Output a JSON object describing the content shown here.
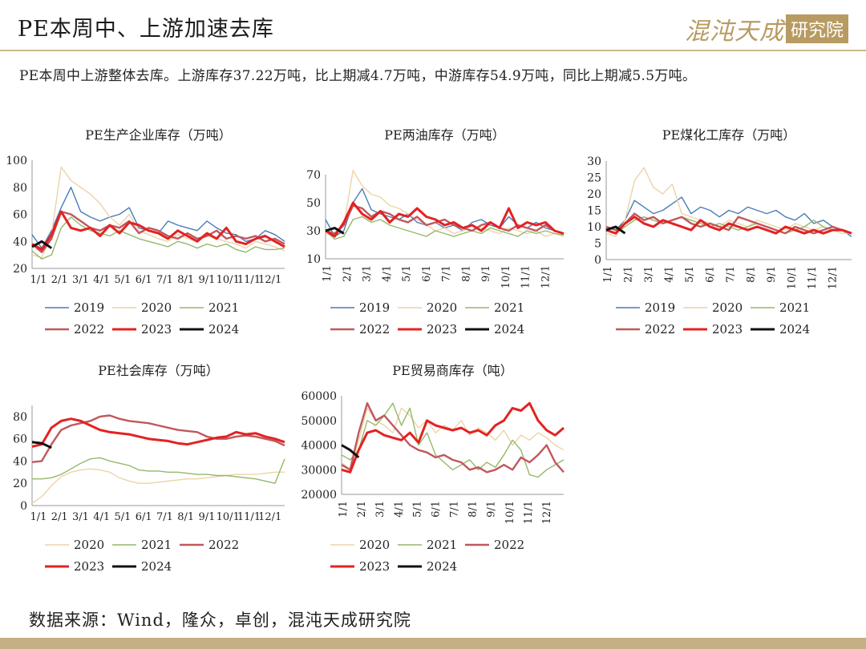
{
  "header": {
    "title": "PE本周中、上游加速去库",
    "logo_text": "混沌天成",
    "logo_box_text": "研究院"
  },
  "summary": "PE本周中上游整体去库。上游库存37.22万吨，比上期减4.7万吨，中游库存54.9万吨，同比上期减5.5万吨。",
  "source": "数据来源：Wind，隆众，卓创，混沌天成研究院",
  "colors": {
    "2019": "#4a7cb5",
    "2020": "#ecd4a8",
    "2021": "#94b86a",
    "2022": "#c0585e",
    "2023": "#e32222",
    "2024": "#111111"
  },
  "chart_data": [
    {
      "type": "line",
      "title": "PE生产企业库存（万吨）",
      "ylim": [
        20,
        100
      ],
      "yticks": [
        "100",
        "80",
        "60",
        "40",
        "20"
      ],
      "xticks": [
        "1/1",
        "2/1",
        "3/1",
        "4/1",
        "5/1",
        "6/1",
        "7/1",
        "8/1",
        "9/1",
        "10/1",
        "11/1",
        "12/1"
      ],
      "series": [
        {
          "name": "2019",
          "values": [
            45,
            35,
            48,
            65,
            80,
            62,
            58,
            55,
            58,
            60,
            65,
            50,
            48,
            46,
            55,
            52,
            50,
            48,
            55,
            50,
            46,
            45,
            40,
            42,
            48,
            45,
            40
          ]
        },
        {
          "name": "2020",
          "values": [
            30,
            28,
            45,
            95,
            85,
            80,
            75,
            68,
            58,
            52,
            60,
            48,
            45,
            42,
            40,
            45,
            42,
            40,
            44,
            42,
            40,
            38,
            35,
            40,
            38,
            36,
            33
          ]
        },
        {
          "name": "2021",
          "values": [
            33,
            27,
            30,
            50,
            58,
            52,
            48,
            46,
            44,
            48,
            45,
            42,
            40,
            38,
            36,
            40,
            38,
            35,
            38,
            36,
            38,
            34,
            32,
            36,
            34,
            34,
            35
          ]
        },
        {
          "name": "2022",
          "values": [
            38,
            32,
            42,
            62,
            60,
            55,
            50,
            48,
            52,
            50,
            55,
            46,
            50,
            48,
            44,
            42,
            46,
            42,
            44,
            48,
            42,
            44,
            42,
            44,
            40,
            42,
            38
          ]
        },
        {
          "name": "2023",
          "values": [
            38,
            34,
            45,
            62,
            50,
            48,
            50,
            44,
            52,
            46,
            54,
            52,
            48,
            46,
            42,
            48,
            44,
            40,
            46,
            42,
            50,
            40,
            38,
            42,
            44,
            40,
            36
          ]
        },
        {
          "name": "2024",
          "values": [
            36,
            40,
            35
          ]
        }
      ]
    },
    {
      "type": "line",
      "title": "PE两油库存（万吨）",
      "ylim": [
        10,
        70
      ],
      "yticks": [
        "70",
        "50",
        "30",
        "10"
      ],
      "xticks": [
        "1/1",
        "2/1",
        "3/1",
        "4/1",
        "5/1",
        "6/1",
        "7/1",
        "8/1",
        "9/1",
        "10/1",
        "11/1",
        "12/1"
      ],
      "series": [
        {
          "name": "2019",
          "values": [
            38,
            26,
            30,
            50,
            60,
            45,
            42,
            40,
            38,
            42,
            36,
            34,
            36,
            32,
            34,
            30,
            36,
            38,
            34,
            32,
            40,
            34,
            32,
            36,
            32,
            30,
            28
          ]
        },
        {
          "name": "2020",
          "values": [
            28,
            26,
            34,
            73,
            62,
            56,
            54,
            48,
            46,
            42,
            38,
            34,
            30,
            32,
            28,
            30,
            34,
            32,
            30,
            28,
            32,
            30,
            28,
            30,
            26,
            28,
            26
          ]
        },
        {
          "name": "2021",
          "values": [
            30,
            24,
            26,
            38,
            40,
            36,
            38,
            34,
            32,
            30,
            28,
            26,
            30,
            28,
            26,
            28,
            30,
            28,
            32,
            30,
            28,
            26,
            30,
            28,
            30,
            28,
            27
          ]
        },
        {
          "name": "2022",
          "values": [
            30,
            28,
            34,
            48,
            46,
            40,
            44,
            42,
            38,
            36,
            40,
            34,
            36,
            38,
            34,
            32,
            30,
            34,
            36,
            32,
            30,
            34,
            32,
            30,
            34,
            30,
            28
          ]
        },
        {
          "name": "2023",
          "values": [
            30,
            26,
            36,
            50,
            42,
            38,
            44,
            36,
            42,
            40,
            46,
            40,
            38,
            34,
            36,
            32,
            34,
            30,
            36,
            32,
            46,
            32,
            36,
            34,
            36,
            30,
            28
          ]
        },
        {
          "name": "2024",
          "values": [
            30,
            32,
            28
          ]
        }
      ]
    },
    {
      "type": "line",
      "title": "PE煤化工库存（万吨）",
      "ylim": [
        0,
        30
      ],
      "yticks": [
        "30",
        "25",
        "20",
        "15",
        "10",
        "5",
        "0"
      ],
      "xticks": [
        "1/1",
        "2/1",
        "3/1",
        "4/1",
        "5/1",
        "6/1",
        "7/1",
        "8/1",
        "9/1",
        "10/1",
        "11/1",
        "12/1"
      ],
      "series": [
        {
          "name": "2019",
          "values": [
            10,
            9,
            12,
            18,
            16,
            14,
            15,
            17,
            19,
            14,
            16,
            15,
            13,
            15,
            14,
            16,
            15,
            14,
            15,
            13,
            12,
            14,
            11,
            12,
            10,
            9,
            7
          ]
        },
        {
          "name": "2020",
          "values": [
            8,
            7,
            12,
            24,
            28,
            22,
            20,
            23,
            14,
            13,
            12,
            11,
            10,
            12,
            11,
            10,
            12,
            11,
            10,
            9,
            11,
            10,
            9,
            10,
            9,
            8,
            8
          ]
        },
        {
          "name": "2021",
          "values": [
            9,
            8,
            10,
            12,
            13,
            12,
            11,
            12,
            13,
            12,
            11,
            10,
            11,
            10,
            9,
            10,
            11,
            10,
            9,
            8,
            9,
            10,
            12,
            10,
            9,
            9,
            8
          ]
        },
        {
          "name": "2022",
          "values": [
            10,
            9,
            11,
            14,
            12,
            13,
            11,
            12,
            13,
            11,
            10,
            11,
            10,
            9,
            13,
            12,
            11,
            10,
            9,
            8,
            10,
            9,
            8,
            9,
            10,
            9,
            8
          ]
        },
        {
          "name": "2023",
          "values": [
            9,
            8,
            11,
            13,
            11,
            10,
            12,
            11,
            10,
            9,
            12,
            10,
            9,
            11,
            10,
            9,
            10,
            9,
            8,
            10,
            9,
            8,
            9,
            8,
            9,
            9,
            8
          ]
        },
        {
          "name": "2024",
          "values": [
            9,
            10,
            8
          ]
        }
      ]
    },
    {
      "type": "line",
      "title": "PE社会库存（万吨）",
      "ylim": [
        0,
        90
      ],
      "yticks": [
        "80",
        "60",
        "40",
        "20",
        "0"
      ],
      "xticks": [
        "1/1",
        "2/1",
        "3/1",
        "4/1",
        "5/1",
        "6/1",
        "7/1",
        "8/1",
        "9/1",
        "10/1",
        "11/1",
        "12/1"
      ],
      "series": [
        {
          "name": "2020",
          "values": [
            2,
            8,
            18,
            26,
            30,
            32,
            33,
            32,
            30,
            25,
            22,
            20,
            20,
            21,
            22,
            23,
            24,
            24,
            25,
            26,
            27,
            28,
            28,
            28,
            29,
            30,
            30
          ]
        },
        {
          "name": "2021",
          "values": [
            24,
            24,
            25,
            28,
            33,
            38,
            42,
            43,
            40,
            38,
            36,
            32,
            31,
            31,
            30,
            30,
            29,
            28,
            28,
            27,
            27,
            26,
            25,
            24,
            22,
            20,
            42
          ]
        },
        {
          "name": "2022",
          "values": [
            39,
            40,
            55,
            68,
            72,
            74,
            76,
            80,
            81,
            78,
            76,
            75,
            74,
            72,
            70,
            68,
            67,
            66,
            62,
            60,
            60,
            62,
            63,
            62,
            60,
            58,
            54
          ]
        },
        {
          "name": "2023",
          "values": [
            53,
            55,
            70,
            76,
            78,
            76,
            72,
            68,
            66,
            65,
            64,
            62,
            60,
            59,
            58,
            56,
            55,
            57,
            59,
            61,
            62,
            66,
            64,
            65,
            62,
            60,
            57
          ]
        },
        {
          "name": "2024",
          "values": [
            57,
            56,
            52
          ]
        }
      ]
    },
    {
      "type": "line",
      "title": "PE贸易商库存（吨）",
      "ylim": [
        20000,
        60000
      ],
      "yticks": [
        "60000",
        "50000",
        "40000",
        "30000",
        "20000"
      ],
      "xticks": [
        "1/1",
        "2/1",
        "3/1",
        "4/1",
        "5/1",
        "6/1",
        "7/1",
        "8/1",
        "9/1",
        "10/1",
        "11/1",
        "12/1"
      ],
      "series": [
        {
          "name": "2020",
          "values": [
            33000,
            30000,
            42000,
            55000,
            50000,
            48000,
            45000,
            55000,
            52000,
            47000,
            50000,
            45000,
            48000,
            46000,
            50000,
            44000,
            47000,
            45000,
            42000,
            46000,
            40000,
            44000,
            42000,
            45000,
            43000,
            40000,
            38000
          ]
        },
        {
          "name": "2021",
          "values": [
            36000,
            34000,
            38000,
            50000,
            48000,
            52000,
            57000,
            48000,
            55000,
            40000,
            45000,
            36000,
            33000,
            30000,
            32000,
            34000,
            30000,
            33000,
            31000,
            36000,
            42000,
            38000,
            28000,
            27000,
            30000,
            32000,
            34000
          ]
        },
        {
          "name": "2022",
          "values": [
            32000,
            30000,
            45000,
            57000,
            50000,
            52000,
            48000,
            44000,
            40000,
            38000,
            37000,
            35000,
            36000,
            34000,
            33000,
            30000,
            31000,
            29000,
            30000,
            32000,
            30000,
            35000,
            33000,
            36000,
            40000,
            33000,
            29000
          ]
        },
        {
          "name": "2023",
          "values": [
            30000,
            29000,
            38000,
            45000,
            46000,
            44000,
            43000,
            42000,
            45000,
            41000,
            50000,
            48000,
            47000,
            46000,
            47000,
            45000,
            46000,
            44000,
            48000,
            50000,
            55000,
            54000,
            57000,
            50000,
            46000,
            44000,
            47000
          ]
        },
        {
          "name": "2024",
          "values": [
            40000,
            38000,
            35000
          ]
        }
      ]
    }
  ]
}
